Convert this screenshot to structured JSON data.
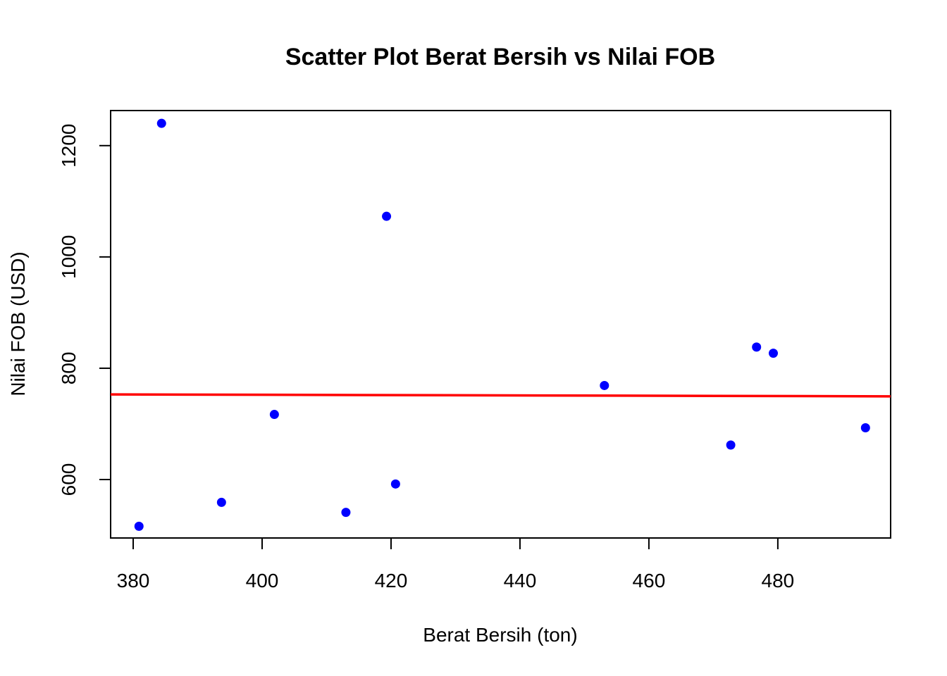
{
  "chart_data": {
    "type": "scatter",
    "title": "Scatter Plot Berat Bersih vs Nilai FOB",
    "xlabel": "Berat Bersih (ton)",
    "ylabel": "Nilai FOB (USD)",
    "xlim": [
      376.5,
      497.5
    ],
    "ylim": [
      495,
      1263
    ],
    "xticks": [
      380,
      400,
      420,
      440,
      460,
      480
    ],
    "yticks": [
      600,
      800,
      1000,
      1200
    ],
    "grid": false,
    "points": [
      {
        "x": 380.9,
        "y": 516
      },
      {
        "x": 384.4,
        "y": 1240
      },
      {
        "x": 393.7,
        "y": 559
      },
      {
        "x": 401.9,
        "y": 717
      },
      {
        "x": 413.0,
        "y": 541
      },
      {
        "x": 419.3,
        "y": 1073
      },
      {
        "x": 420.7,
        "y": 592
      },
      {
        "x": 453.1,
        "y": 769
      },
      {
        "x": 472.7,
        "y": 662
      },
      {
        "x": 476.7,
        "y": 838
      },
      {
        "x": 479.3,
        "y": 827
      },
      {
        "x": 493.6,
        "y": 693
      }
    ],
    "trend_line": {
      "x": [
        376.5,
        497.5
      ],
      "y": [
        753,
        749.5
      ]
    },
    "colors": {
      "points": "#0000FF",
      "trend_line": "#FF0000",
      "frame": "#000000"
    }
  }
}
